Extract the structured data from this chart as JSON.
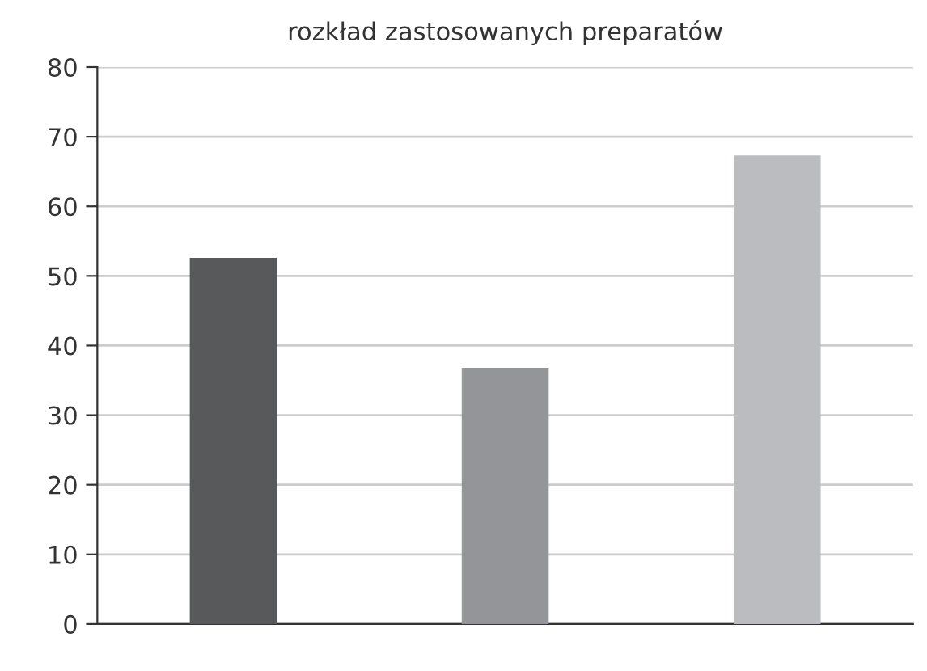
{
  "chart_data": {
    "type": "bar",
    "title": "rozkład zastosowanych preparatów",
    "categories": [
      null,
      null,
      null
    ],
    "values": [
      52.6,
      36.8,
      67.3
    ],
    "colors": [
      "#58595b",
      "#939598",
      "#bbbcbf"
    ],
    "ylim": [
      0,
      80
    ],
    "yticks": [
      0,
      10,
      20,
      30,
      40,
      50,
      60,
      70,
      80
    ],
    "grid": "y"
  }
}
